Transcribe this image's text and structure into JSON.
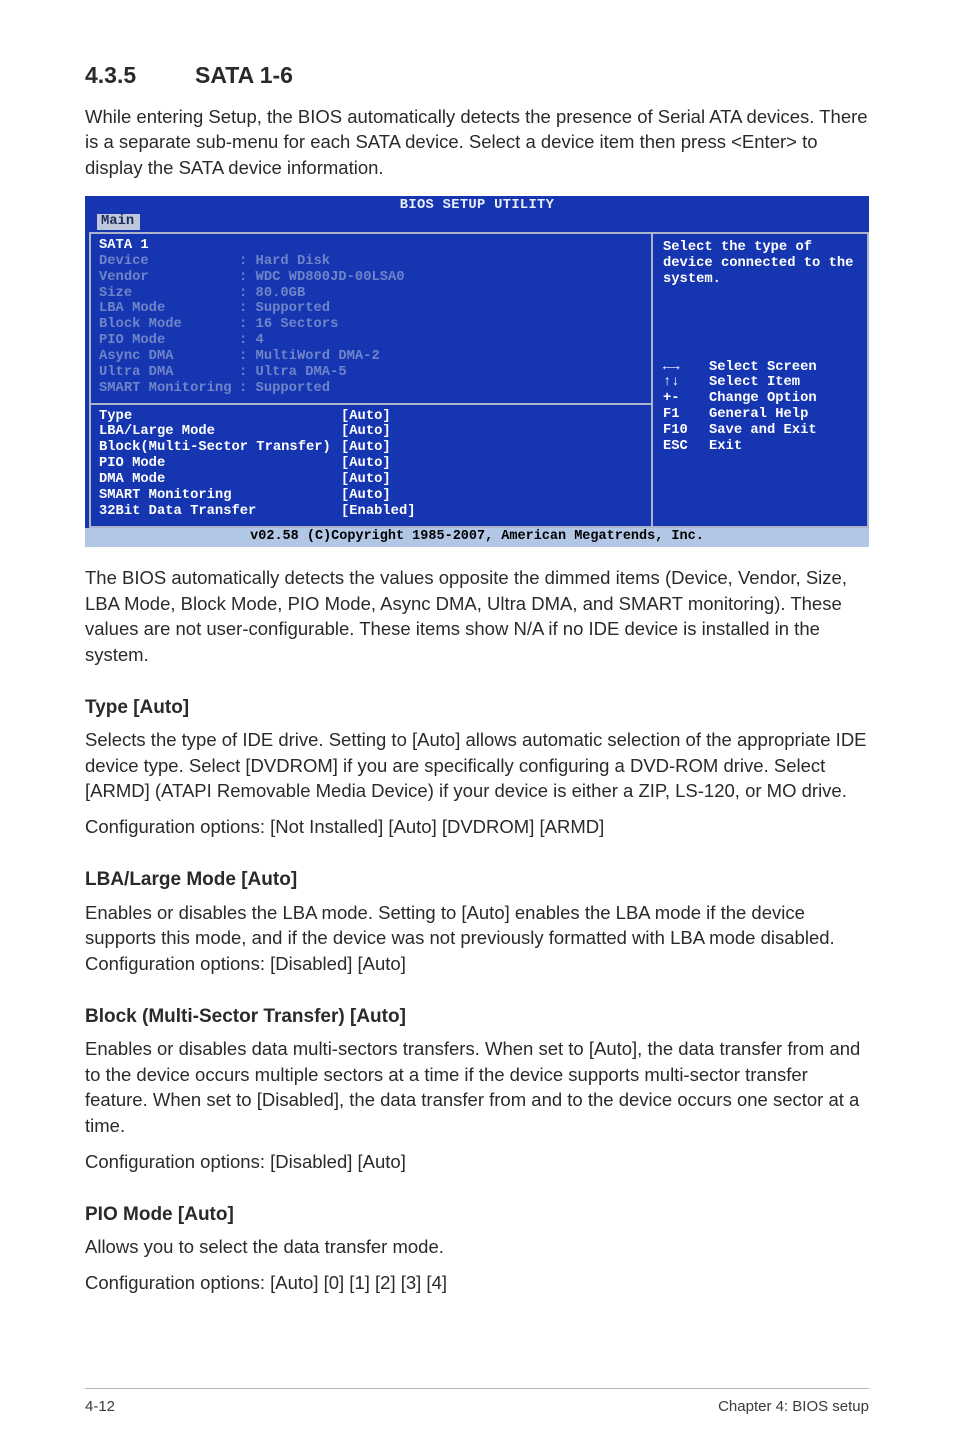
{
  "heading": {
    "number": "4.3.5",
    "title": "SATA 1-6"
  },
  "intro": "While entering Setup, the BIOS automatically detects the presence of Serial ATA devices. There is a separate sub-menu for each SATA device. Select a device item then press <Enter> to display the SATA device information.",
  "bios": {
    "title": "BIOS SETUP UTILITY",
    "tab": "Main",
    "panel_title": "SATA 1",
    "dim_rows": [
      {
        "k": "Device",
        "v": ": Hard Disk"
      },
      {
        "k": "Vendor",
        "v": ": WDC WD800JD-00LSA0"
      },
      {
        "k": "Size",
        "v": ": 80.0GB"
      },
      {
        "k": "LBA Mode",
        "v": ": Supported"
      },
      {
        "k": "Block Mode",
        "v": ": 16 Sectors"
      },
      {
        "k": "PIO Mode",
        "v": ": 4"
      },
      {
        "k": "Async DMA",
        "v": ": MultiWord DMA-2"
      },
      {
        "k": "Ultra DMA",
        "v": ": Ultra DMA-5"
      },
      {
        "k": "SMART Monitoring",
        "v": ": Supported"
      }
    ],
    "config_rows": [
      {
        "k": "Type",
        "v": "[Auto]"
      },
      {
        "k": "LBA/Large Mode",
        "v": "[Auto]"
      },
      {
        "k": "Block(Multi-Sector Transfer)",
        "v": "[Auto]"
      },
      {
        "k": "PIO Mode",
        "v": "[Auto]"
      },
      {
        "k": "DMA Mode",
        "v": "[Auto]"
      },
      {
        "k": "SMART Monitoring",
        "v": "[Auto]"
      },
      {
        "k": "32Bit Data Transfer",
        "v": "[Enabled]"
      }
    ],
    "help_text": "Select the type of device connected to the system.",
    "help_keys": [
      {
        "k": "←→",
        "d": "Select Screen"
      },
      {
        "k": "↑↓",
        "d": "Select Item"
      },
      {
        "k": "+-",
        "d": "Change Option"
      },
      {
        "k": "F1",
        "d": "General Help"
      },
      {
        "k": "F10",
        "d": "Save and Exit"
      },
      {
        "k": "ESC",
        "d": "Exit"
      }
    ],
    "footer": "v02.58 (C)Copyright 1985-2007, American Megatrends, Inc."
  },
  "para_after_bios": "The BIOS automatically detects the values opposite the dimmed items (Device, Vendor, Size, LBA Mode, Block Mode, PIO Mode, Async DMA, Ultra DMA, and SMART monitoring). These values are not user-configurable. These items show N/A if no IDE device is installed in the system.",
  "sections": {
    "type": {
      "h": "Type [Auto]",
      "p1": "Selects the type of IDE drive. Setting to [Auto] allows automatic selection of the appropriate IDE device type. Select [DVDROM] if you are specifically configuring a DVD-ROM drive. Select [ARMD] (ATAPI Removable Media Device) if your device is either a ZIP, LS-120, or MO drive.",
      "p2": "Configuration options: [Not Installed] [Auto] [DVDROM] [ARMD]"
    },
    "lba": {
      "h": "LBA/Large Mode [Auto]",
      "p": "Enables or disables the LBA mode. Setting to [Auto] enables the LBA mode if the device supports this mode, and if the device was not previously formatted with LBA mode disabled. Configuration options: [Disabled] [Auto]"
    },
    "block": {
      "h": "Block (Multi-Sector Transfer) [Auto]",
      "p1": "Enables or disables data multi-sectors transfers. When set to [Auto], the data transfer from and to the device occurs multiple sectors at a time if the device supports multi-sector transfer feature. When set to [Disabled], the data transfer from and to the device occurs one sector at a time.",
      "p2": "Configuration options: [Disabled] [Auto]"
    },
    "pio": {
      "h": "PIO Mode [Auto]",
      "p1": "Allows you to select the data transfer mode.",
      "p2": "Configuration options: [Auto] [0] [1] [2] [3] [4]"
    }
  },
  "footer": {
    "left": "4-12",
    "right": "Chapter 4: BIOS setup"
  }
}
